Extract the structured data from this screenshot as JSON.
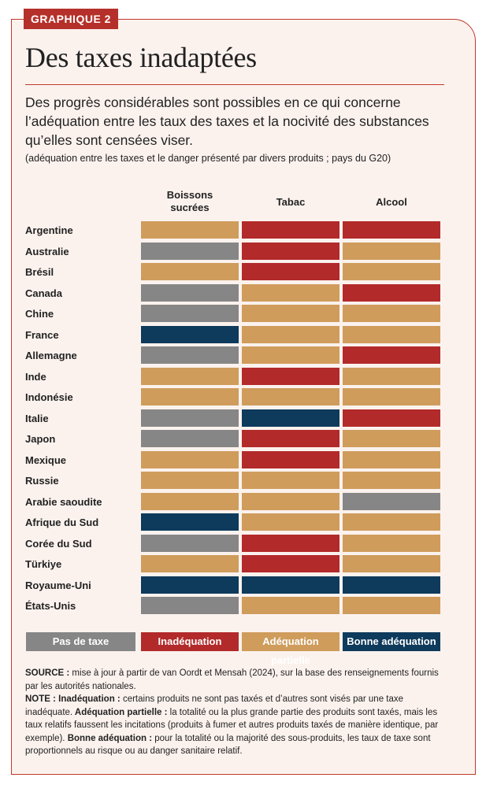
{
  "header": {
    "tag": "GRAPHIQUE 2",
    "title": "Des taxes inadaptées",
    "subtitle": "Des progrès considérables sont possibles en ce qui concerne l’adéquation entre les taux des taxes et la nocivité des substances qu’elles sont censées viser.",
    "note": "(adéquation entre les taxes et le danger présenté par divers produits ; pays du G20)"
  },
  "colors": {
    "pas_de_taxe": "#868686",
    "inadequation": "#b22a2a",
    "adequation_partielle": "#cf9c5c",
    "bonne_adequation": "#0e3a5c"
  },
  "chart_data": {
    "type": "table",
    "columns": [
      "Boissons\nsucrées",
      "Tabac",
      "Alcool"
    ],
    "rows": [
      {
        "country": "Argentine",
        "values": [
          "Adéquation partielle",
          "Inadéquation",
          "Inadéquation"
        ]
      },
      {
        "country": "Australie",
        "values": [
          "Pas de taxe",
          "Inadéquation",
          "Adéquation partielle"
        ]
      },
      {
        "country": "Brésil",
        "values": [
          "Adéquation partielle",
          "Inadéquation",
          "Adéquation partielle"
        ]
      },
      {
        "country": "Canada",
        "values": [
          "Pas de taxe",
          "Adéquation partielle",
          "Inadéquation"
        ]
      },
      {
        "country": "Chine",
        "values": [
          "Pas de taxe",
          "Adéquation partielle",
          "Adéquation partielle"
        ]
      },
      {
        "country": "France",
        "values": [
          "Bonne adéquation",
          "Adéquation partielle",
          "Adéquation partielle"
        ]
      },
      {
        "country": "Allemagne",
        "values": [
          "Pas de taxe",
          "Adéquation partielle",
          "Inadéquation"
        ]
      },
      {
        "country": "Inde",
        "values": [
          "Adéquation partielle",
          "Inadéquation",
          "Adéquation partielle"
        ]
      },
      {
        "country": "Indonésie",
        "values": [
          "Adéquation partielle",
          "Adéquation partielle",
          "Adéquation partielle"
        ]
      },
      {
        "country": "Italie",
        "values": [
          "Pas de taxe",
          "Bonne adéquation",
          "Inadéquation"
        ]
      },
      {
        "country": "Japon",
        "values": [
          "Pas de taxe",
          "Inadéquation",
          "Adéquation partielle"
        ]
      },
      {
        "country": "Mexique",
        "values": [
          "Adéquation partielle",
          "Inadéquation",
          "Adéquation partielle"
        ]
      },
      {
        "country": "Russie",
        "values": [
          "Adéquation partielle",
          "Adéquation partielle",
          "Adéquation partielle"
        ]
      },
      {
        "country": "Arabie saoudite",
        "values": [
          "Adéquation partielle",
          "Adéquation partielle",
          "Pas de taxe"
        ]
      },
      {
        "country": "Afrique du Sud",
        "values": [
          "Bonne adéquation",
          "Adéquation partielle",
          "Adéquation partielle"
        ]
      },
      {
        "country": "Corée du Sud",
        "values": [
          "Pas de taxe",
          "Inadéquation",
          "Adéquation partielle"
        ]
      },
      {
        "country": "Türkiye",
        "values": [
          "Adéquation partielle",
          "Inadéquation",
          "Adéquation partielle"
        ]
      },
      {
        "country": "Royaume-Uni",
        "values": [
          "Bonne adéquation",
          "Bonne adéquation",
          "Bonne adéquation"
        ]
      },
      {
        "country": "États-Unis",
        "values": [
          "Pas de taxe",
          "Adéquation partielle",
          "Adéquation partielle"
        ]
      }
    ],
    "legend": [
      {
        "label": "Pas de taxe",
        "color": "#868686"
      },
      {
        "label": "Inadéquation",
        "color": "#b22a2a"
      },
      {
        "label": "Adéquation partielle",
        "color": "#cf9c5c"
      },
      {
        "label": "Bonne adéquation",
        "color": "#0e3a5c"
      }
    ]
  },
  "footer": {
    "source_label": "SOURCE :",
    "source_text": " mise à jour à partir de van Oordt et Mensah (2024), sur la base des renseignements fournis par les autorités nationales.",
    "note_label": "NOTE :",
    "inadequation_label": " Inadéquation :",
    "inadequation_text": " certains produits ne sont pas taxés et d’autres sont visés par une taxe inadéquate.",
    "partielle_label": " Adéquation partielle :",
    "partielle_text": " la totalité ou la plus grande partie des produits sont taxés, mais les taux relatifs faussent les incitations (produits à fumer et autres produits taxés de manière identique, par exemple).",
    "bonne_label": " Bonne adéquation :",
    "bonne_text": " pour la totalité ou la majorité des sous-produits, les taux de taxe sont proportionnels au risque ou au danger sanitaire relatif."
  }
}
